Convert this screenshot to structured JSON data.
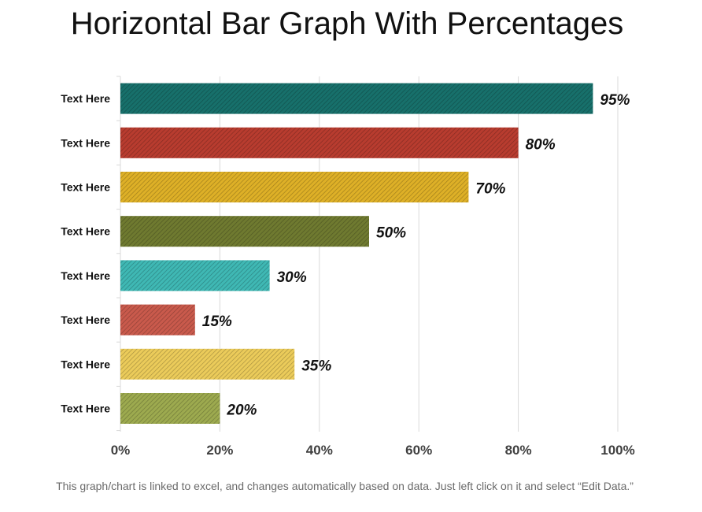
{
  "title": "Horizontal Bar Graph With Percentages",
  "footnote": "This graph/chart is linked to excel, and changes automatically based on data. Just left click on it and select “Edit Data.”",
  "chart_data": {
    "type": "bar",
    "orientation": "horizontal",
    "title": "Horizontal Bar Graph With Percentages",
    "xlabel": "",
    "ylabel": "",
    "categories": [
      "Text Here",
      "Text Here",
      "Text Here",
      "Text Here",
      "Text Here",
      "Text Here",
      "Text Here",
      "Text Here"
    ],
    "values": [
      95,
      80,
      70,
      50,
      30,
      15,
      35,
      20
    ],
    "value_labels": [
      "95%",
      "80%",
      "70%",
      "50%",
      "30%",
      "15%",
      "35%",
      "20%"
    ],
    "colors": [
      "#17706b",
      "#b83c2f",
      "#deb027",
      "#6f7a30",
      "#3fb8b4",
      "#c95a4c",
      "#ebcb5a",
      "#9daa4f"
    ],
    "xlim": [
      0,
      100
    ],
    "xticks": [
      0,
      20,
      40,
      60,
      80,
      100
    ],
    "xtick_labels": [
      "0%",
      "20%",
      "40%",
      "60%",
      "80%",
      "100%"
    ],
    "grid": "vertical",
    "legend": "none",
    "bar_fill": "diagonal-hatch"
  }
}
